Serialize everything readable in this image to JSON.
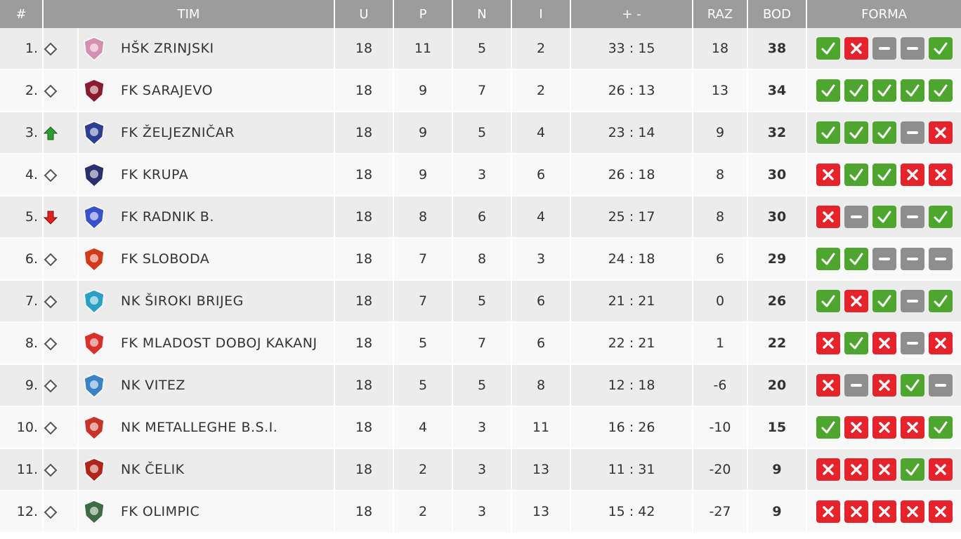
{
  "header": {
    "rank": "#",
    "team": "TIM",
    "played": "U",
    "won": "P",
    "drawn": "N",
    "lost": "I",
    "goals": "+ -",
    "diff": "RAZ",
    "points": "BOD",
    "form": "FORMA"
  },
  "colors": {
    "header_bg": "#9c9c9c",
    "win": "#4fa62f",
    "loss": "#e4242a",
    "draw": "#8e8e8e",
    "row_odd": "#ececec",
    "row_even": "#f8f8f8"
  },
  "rows": [
    {
      "rank": "1.",
      "trend": "same",
      "logo_color": "#d58fb0",
      "logo": "zrinjski-crest-icon",
      "team": "HŠK ZRINJSKI",
      "played": "18",
      "won": "11",
      "drawn": "5",
      "lost": "2",
      "goals": "33 : 15",
      "diff": "18",
      "points": "38",
      "form": [
        "W",
        "L",
        "D",
        "D",
        "W"
      ]
    },
    {
      "rank": "2.",
      "trend": "same",
      "logo_color": "#8a1a2e",
      "logo": "sarajevo-crest-icon",
      "team": "FK SARAJEVO",
      "played": "18",
      "won": "9",
      "drawn": "7",
      "lost": "2",
      "goals": "26 : 13",
      "diff": "13",
      "points": "34",
      "form": [
        "W",
        "W",
        "W",
        "W",
        "W"
      ]
    },
    {
      "rank": "3.",
      "trend": "up",
      "logo_color": "#2c3e8f",
      "logo": "zeljeznicar-crest-icon",
      "team": "FK ŽELJEZNIČAR",
      "played": "18",
      "won": "9",
      "drawn": "5",
      "lost": "4",
      "goals": "23 : 14",
      "diff": "9",
      "points": "32",
      "form": [
        "W",
        "W",
        "W",
        "D",
        "L"
      ]
    },
    {
      "rank": "4.",
      "trend": "same",
      "logo_color": "#2a2f6e",
      "logo": "krupa-crest-icon",
      "team": "FK KRUPA",
      "played": "18",
      "won": "9",
      "drawn": "3",
      "lost": "6",
      "goals": "26 : 18",
      "diff": "8",
      "points": "30",
      "form": [
        "L",
        "W",
        "W",
        "L",
        "L"
      ]
    },
    {
      "rank": "5.",
      "trend": "down",
      "logo_color": "#3a52c9",
      "logo": "radnik-crest-icon",
      "team": "FK RADNIK B.",
      "played": "18",
      "won": "8",
      "drawn": "6",
      "lost": "4",
      "goals": "25 : 17",
      "diff": "8",
      "points": "30",
      "form": [
        "L",
        "D",
        "W",
        "D",
        "W"
      ]
    },
    {
      "rank": "6.",
      "trend": "same",
      "logo_color": "#d23a1a",
      "logo": "sloboda-crest-icon",
      "team": "FK SLOBODA",
      "played": "18",
      "won": "7",
      "drawn": "8",
      "lost": "3",
      "goals": "24 : 18",
      "diff": "6",
      "points": "29",
      "form": [
        "W",
        "W",
        "D",
        "D",
        "D"
      ]
    },
    {
      "rank": "7.",
      "trend": "same",
      "logo_color": "#2aa1c4",
      "logo": "siroki-brijeg-crest-icon",
      "team": "NK ŠIROKI BRIJEG",
      "played": "18",
      "won": "7",
      "drawn": "5",
      "lost": "6",
      "goals": "21 : 21",
      "diff": "0",
      "points": "26",
      "form": [
        "W",
        "L",
        "W",
        "D",
        "W"
      ]
    },
    {
      "rank": "8.",
      "trend": "same",
      "logo_color": "#d9302a",
      "logo": "mladost-crest-icon",
      "team": "FK MLADOST DOBOJ KAKANJ",
      "played": "18",
      "won": "5",
      "drawn": "7",
      "lost": "6",
      "goals": "22 : 21",
      "diff": "1",
      "points": "22",
      "form": [
        "L",
        "W",
        "L",
        "D",
        "L"
      ]
    },
    {
      "rank": "9.",
      "trend": "same",
      "logo_color": "#3b82c4",
      "logo": "vitez-crest-icon",
      "team": "NK VITEZ",
      "played": "18",
      "won": "5",
      "drawn": "5",
      "lost": "8",
      "goals": "12 : 18",
      "diff": "-6",
      "points": "20",
      "form": [
        "L",
        "D",
        "L",
        "W",
        "D"
      ]
    },
    {
      "rank": "10.",
      "trend": "same",
      "logo_color": "#c8332a",
      "logo": "metalleghe-crest-icon",
      "team": "NK METALLEGHE B.S.I.",
      "played": "18",
      "won": "4",
      "drawn": "3",
      "lost": "11",
      "goals": "16 : 26",
      "diff": "-10",
      "points": "15",
      "form": [
        "W",
        "L",
        "L",
        "L",
        "W"
      ]
    },
    {
      "rank": "11.",
      "trend": "same",
      "logo_color": "#b1241c",
      "logo": "celik-crest-icon",
      "team": "NK ČELIK",
      "played": "18",
      "won": "2",
      "drawn": "3",
      "lost": "13",
      "goals": "11 : 31",
      "diff": "-20",
      "points": "9",
      "form": [
        "L",
        "L",
        "L",
        "W",
        "L"
      ]
    },
    {
      "rank": "12.",
      "trend": "same",
      "logo_color": "#3d6b45",
      "logo": "olimpic-crest-icon",
      "team": "FK OLIMPIC",
      "played": "18",
      "won": "2",
      "drawn": "3",
      "lost": "13",
      "goals": "15 : 42",
      "diff": "-27",
      "points": "9",
      "form": [
        "L",
        "L",
        "L",
        "L",
        "L"
      ]
    }
  ]
}
